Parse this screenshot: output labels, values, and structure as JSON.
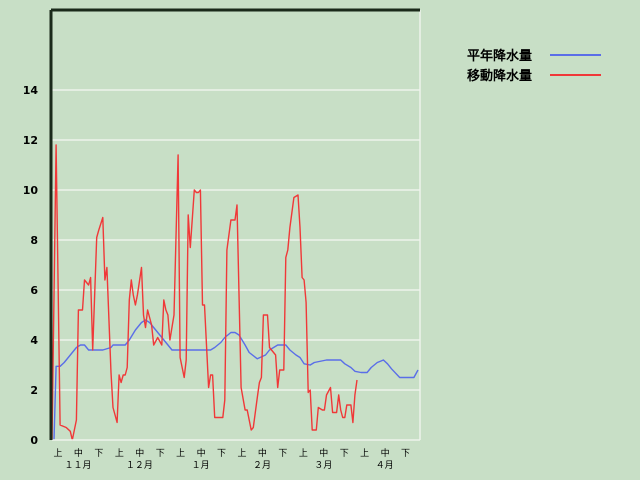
{
  "chart_data": {
    "type": "line",
    "title": "",
    "xlabel": "",
    "ylabel": "",
    "ylim": [
      0,
      17.2
    ],
    "yticks": [
      0,
      2,
      4,
      6,
      8,
      10,
      12,
      14
    ],
    "xlim": [
      "11/1",
      "4/30"
    ],
    "x_dekad_labels": [
      "上",
      "中",
      "下",
      "上",
      "中",
      "下",
      "上",
      "中",
      "下",
      "上",
      "中",
      "下",
      "上",
      "中",
      "下",
      "上",
      "中",
      "下"
    ],
    "x_month_labels": [
      "１１月",
      "１２月",
      "１月",
      "２月",
      "３月",
      "４月"
    ],
    "grid": "horizontal",
    "legend_position": "top-right",
    "colors": {
      "background": "#c8dfc6",
      "normal": "#5a6ee8",
      "moving": "#f03838",
      "axis": "#1a2a1a",
      "grid": "#eef3ec"
    },
    "series": [
      {
        "name": "平年降水量",
        "color": "#5a6ee8",
        "points": [
          [
            "11/2",
            0
          ],
          [
            "11/3",
            2.95
          ],
          [
            "11/5",
            2.95
          ],
          [
            "11/7",
            3.1
          ],
          [
            "11/10",
            3.4
          ],
          [
            "11/13",
            3.7
          ],
          [
            "11/15",
            3.8
          ],
          [
            "11/17",
            3.8
          ],
          [
            "11/19",
            3.6
          ],
          [
            "11/26",
            3.6
          ],
          [
            "11/30",
            3.7
          ],
          [
            "12/1",
            3.8
          ],
          [
            "12/7",
            3.8
          ],
          [
            "12/9",
            4.0
          ],
          [
            "12/12",
            4.4
          ],
          [
            "12/15",
            4.7
          ],
          [
            "12/17",
            4.8
          ],
          [
            "12/19",
            4.7
          ],
          [
            "12/22",
            4.4
          ],
          [
            "12/24",
            4.2
          ],
          [
            "12/27",
            3.9
          ],
          [
            "12/30",
            3.6
          ],
          [
            "1/18",
            3.6
          ],
          [
            "1/20",
            3.7
          ],
          [
            "1/23",
            3.9
          ],
          [
            "1/25",
            4.1
          ],
          [
            "1/28",
            4.3
          ],
          [
            "1/30",
            4.3
          ],
          [
            "2/1",
            4.2
          ],
          [
            "2/4",
            3.8
          ],
          [
            "2/6",
            3.5
          ],
          [
            "2/10",
            3.25
          ],
          [
            "2/14",
            3.4
          ],
          [
            "2/16",
            3.6
          ],
          [
            "2/20",
            3.8
          ],
          [
            "2/24",
            3.8
          ],
          [
            "2/26",
            3.6
          ],
          [
            "3/1",
            3.4
          ],
          [
            "3/3",
            3.3
          ],
          [
            "3/5",
            3.05
          ],
          [
            "3/8",
            3.0
          ],
          [
            "3/10",
            3.1
          ],
          [
            "3/16",
            3.2
          ],
          [
            "3/23",
            3.2
          ],
          [
            "3/25",
            3.05
          ],
          [
            "3/28",
            2.9
          ],
          [
            "3/30",
            2.75
          ],
          [
            "4/2",
            2.7
          ],
          [
            "4/5",
            2.7
          ],
          [
            "4/7",
            2.9
          ],
          [
            "4/10",
            3.1
          ],
          [
            "4/13",
            3.2
          ],
          [
            "4/15",
            3.05
          ],
          [
            "4/17",
            2.85
          ],
          [
            "4/21",
            2.5
          ],
          [
            "4/28",
            2.5
          ],
          [
            "4/30",
            2.8
          ]
        ]
      },
      {
        "name": "移動降水量",
        "color": "#f03838",
        "points": [
          [
            "11/1",
            0
          ],
          [
            "11/3",
            11.8
          ],
          [
            "11/5",
            0.6
          ],
          [
            "11/8",
            0.5
          ],
          [
            "11/10",
            0.35
          ],
          [
            "11/11",
            0
          ],
          [
            "11/13",
            0.8
          ],
          [
            "11/14",
            5.2
          ],
          [
            "11/16",
            5.2
          ],
          [
            "11/17",
            6.4
          ],
          [
            "11/19",
            6.2
          ],
          [
            "11/20",
            6.5
          ],
          [
            "11/21",
            3.6
          ],
          [
            "11/23",
            8.1
          ],
          [
            "11/24",
            8.4
          ],
          [
            "11/26",
            8.9
          ],
          [
            "11/27",
            6.4
          ],
          [
            "11/28",
            6.9
          ],
          [
            "11/30",
            2.7
          ],
          [
            "12/1",
            1.3
          ],
          [
            "12/3",
            0.7
          ],
          [
            "12/4",
            2.6
          ],
          [
            "12/5",
            2.3
          ],
          [
            "12/6",
            2.6
          ],
          [
            "12/7",
            2.6
          ],
          [
            "12/8",
            2.9
          ],
          [
            "12/9",
            5.6
          ],
          [
            "12/10",
            6.4
          ],
          [
            "12/11",
            5.8
          ],
          [
            "12/12",
            5.4
          ],
          [
            "12/13",
            5.8
          ],
          [
            "12/15",
            6.9
          ],
          [
            "12/16",
            5.0
          ],
          [
            "12/17",
            4.5
          ],
          [
            "12/18",
            5.2
          ],
          [
            "12/20",
            4.6
          ],
          [
            "12/21",
            3.8
          ],
          [
            "12/23",
            4.1
          ],
          [
            "12/25",
            3.8
          ],
          [
            "12/26",
            5.6
          ],
          [
            "12/27",
            5.2
          ],
          [
            "12/28",
            5.0
          ],
          [
            "12/29",
            4.0
          ],
          [
            "12/31",
            5.0
          ],
          [
            "1/2",
            11.4
          ],
          [
            "1/3",
            3.3
          ],
          [
            "1/5",
            2.5
          ],
          [
            "1/6",
            3.2
          ],
          [
            "1/7",
            9.0
          ],
          [
            "1/8",
            7.7
          ],
          [
            "1/10",
            10.0
          ],
          [
            "1/11",
            9.9
          ],
          [
            "1/12",
            9.9
          ],
          [
            "1/13",
            10.0
          ],
          [
            "1/14",
            5.4
          ],
          [
            "1/15",
            5.4
          ],
          [
            "1/17",
            2.1
          ],
          [
            "1/18",
            2.6
          ],
          [
            "1/19",
            2.6
          ],
          [
            "1/20",
            0.9
          ],
          [
            "1/24",
            0.9
          ],
          [
            "1/25",
            1.6
          ],
          [
            "1/26",
            7.6
          ],
          [
            "1/28",
            8.8
          ],
          [
            "1/30",
            8.8
          ],
          [
            "1/31",
            9.4
          ],
          [
            "2/2",
            2.1
          ],
          [
            "2/4",
            1.2
          ],
          [
            "2/5",
            1.2
          ],
          [
            "2/7",
            0.4
          ],
          [
            "2/8",
            0.5
          ],
          [
            "2/10",
            1.7
          ],
          [
            "2/11",
            2.3
          ],
          [
            "2/12",
            2.5
          ],
          [
            "2/13",
            5.0
          ],
          [
            "2/15",
            5.0
          ],
          [
            "2/16",
            3.7
          ],
          [
            "2/19",
            3.4
          ],
          [
            "2/20",
            2.1
          ],
          [
            "2/21",
            2.8
          ],
          [
            "2/23",
            2.8
          ],
          [
            "2/24",
            7.3
          ],
          [
            "2/25",
            7.6
          ],
          [
            "2/26",
            8.5
          ],
          [
            "2/28",
            9.7
          ],
          [
            "3/2",
            9.8
          ],
          [
            "3/3",
            8.5
          ],
          [
            "3/4",
            6.5
          ],
          [
            "3/5",
            6.4
          ],
          [
            "3/6",
            5.5
          ],
          [
            "3/7",
            1.9
          ],
          [
            "3/8",
            2.0
          ],
          [
            "3/9",
            0.4
          ],
          [
            "3/11",
            0.4
          ],
          [
            "3/12",
            1.3
          ],
          [
            "3/14",
            1.2
          ],
          [
            "3/15",
            1.2
          ],
          [
            "3/16",
            1.8
          ],
          [
            "3/18",
            2.1
          ],
          [
            "3/19",
            1.1
          ],
          [
            "3/21",
            1.1
          ],
          [
            "3/22",
            1.8
          ],
          [
            "3/23",
            1.2
          ],
          [
            "3/24",
            0.9
          ],
          [
            "3/25",
            0.9
          ],
          [
            "3/26",
            1.4
          ],
          [
            "3/28",
            1.4
          ],
          [
            "3/29",
            0.7
          ],
          [
            "3/30",
            1.8
          ],
          [
            "3/31",
            2.4
          ]
        ]
      }
    ]
  }
}
